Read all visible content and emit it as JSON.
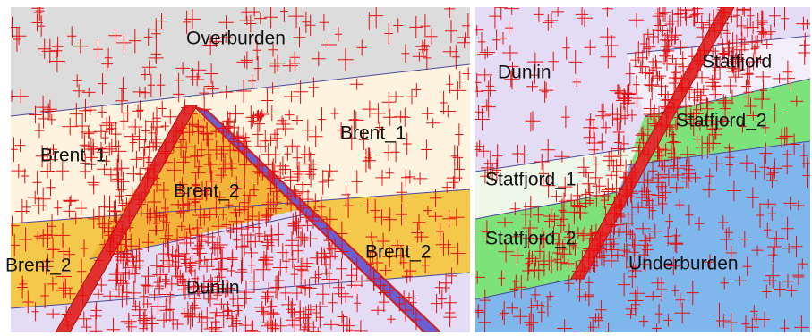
{
  "panels": [
    {
      "labels": [
        "Overburden",
        "Brent_1",
        "Brent_1",
        "Brent_2",
        "Brent_2",
        "Brent_2",
        "Dunlin"
      ]
    },
    {
      "labels": [
        "Dunlin",
        "Statfjord",
        "Statfjord_2",
        "Statfjord_1",
        "Statfjord_2",
        "Underburden"
      ]
    }
  ]
}
